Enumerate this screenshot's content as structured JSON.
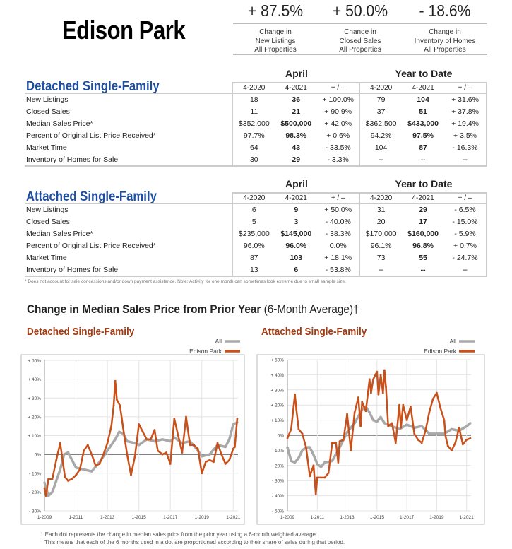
{
  "title": "Edison Park",
  "stats": [
    {
      "value": "+ 87.5%",
      "line1": "Change in",
      "line2": "New Listings",
      "line3": "All Properties"
    },
    {
      "value": "+ 50.0%",
      "line1": "Change in",
      "line2": "Closed Sales",
      "line3": "All Properties"
    },
    {
      "value": "- 18.6%",
      "line1": "Change in",
      "line2": "Inventory of Homes",
      "line3": "All Properties"
    }
  ],
  "group_labels": {
    "month": "April",
    "ytd": "Year to Date"
  },
  "columns": [
    "4-2020",
    "4-2021",
    "+ / –",
    "4-2020",
    "4-2021",
    "+ / –"
  ],
  "sections": [
    {
      "name": "Detached Single-Family",
      "rows": [
        {
          "label": "New Listings",
          "cells": [
            "18",
            "36",
            "+ 100.0%",
            "79",
            "104",
            "+ 31.6%"
          ]
        },
        {
          "label": "Closed Sales",
          "cells": [
            "11",
            "21",
            "+ 90.9%",
            "37",
            "51",
            "+ 37.8%"
          ]
        },
        {
          "label": "Median Sales Price*",
          "cells": [
            "$352,000",
            "$500,000",
            "+ 42.0%",
            "$362,500",
            "$433,000",
            "+ 19.4%"
          ]
        },
        {
          "label": "Percent of Original List Price Received*",
          "cells": [
            "97.7%",
            "98.3%",
            "+ 0.6%",
            "94.2%",
            "97.5%",
            "+ 3.5%"
          ]
        },
        {
          "label": "Market Time",
          "cells": [
            "64",
            "43",
            "- 33.5%",
            "104",
            "87",
            "- 16.3%"
          ]
        },
        {
          "label": "Inventory of Homes for Sale",
          "cells": [
            "30",
            "29",
            "- 3.3%",
            "--",
            "--",
            "--"
          ]
        }
      ]
    },
    {
      "name": "Attached Single-Family",
      "rows": [
        {
          "label": "New Listings",
          "cells": [
            "6",
            "9",
            "+ 50.0%",
            "31",
            "29",
            "- 6.5%"
          ]
        },
        {
          "label": "Closed Sales",
          "cells": [
            "5",
            "3",
            "- 40.0%",
            "20",
            "17",
            "- 15.0%"
          ]
        },
        {
          "label": "Median Sales Price*",
          "cells": [
            "$235,000",
            "$145,000",
            "- 38.3%",
            "$170,000",
            "$160,000",
            "- 5.9%"
          ]
        },
        {
          "label": "Percent of Original List Price Received*",
          "cells": [
            "96.0%",
            "96.0%",
            "0.0%",
            "96.1%",
            "96.8%",
            "+ 0.7%"
          ]
        },
        {
          "label": "Market Time",
          "cells": [
            "87",
            "103",
            "+ 18.1%",
            "73",
            "55",
            "- 24.7%"
          ]
        },
        {
          "label": "Inventory of Homes for Sale",
          "cells": [
            "13",
            "6",
            "- 53.8%",
            "--",
            "--",
            "--"
          ]
        }
      ]
    }
  ],
  "footnote": "* Does not account for sale concessions and/or down payment assistance. Note: Activity for one month can sometimes look extreme due to small sample size.",
  "chart_heading": "Change in Median Sales Price from Prior Year",
  "chart_heading_suffix": "(6-Month Average)†",
  "bottom_note_1": "† Each dot represents the change in median sales price from the prior year using a 6-month weighted average.",
  "bottom_note_2": "This means that each of the 6 months used in a dot are proportioned according to their share of sales during that period.",
  "colors": {
    "all": "#a8a8a8",
    "edison": "#c8501a",
    "title_blue": "#1f4fa0",
    "chart_title": "#a33b12"
  },
  "chart_data": [
    {
      "type": "line",
      "title": "Detached Single-Family",
      "legend_placement": "top-right",
      "grid": true,
      "xlim": [
        2009,
        2021.3
      ],
      "ylim": [
        -30,
        50
      ],
      "yticks": [
        -30,
        -20,
        -10,
        0,
        10,
        20,
        30,
        40,
        50
      ],
      "ytick_labels": [
        "- 30%",
        "- 20%",
        "- 10%",
        "0%",
        "+ 10%",
        "+ 20%",
        "+ 30%",
        "+ 40%",
        "+ 50%"
      ],
      "xticks": [
        2009,
        2011,
        2013,
        2015,
        2017,
        2019,
        2021
      ],
      "xtick_labels": [
        "1-2009",
        "1-2011",
        "1-2013",
        "1-2015",
        "1-2017",
        "1-2019",
        "1-2021"
      ],
      "series": [
        {
          "name": "All",
          "x": [
            2009.0,
            2009.25,
            2009.5,
            2009.75,
            2010.0,
            2010.25,
            2010.5,
            2010.75,
            2011.0,
            2011.5,
            2012.0,
            2012.5,
            2013.0,
            2013.5,
            2013.75,
            2014.0,
            2014.25,
            2014.75,
            2015.0,
            2015.5,
            2016.0,
            2016.5,
            2017.0,
            2017.25,
            2017.75,
            2018.25,
            2018.75,
            2019.0,
            2019.5,
            2020.0,
            2020.5,
            2020.75,
            2021.0,
            2021.25
          ],
          "y": [
            -15,
            -22,
            -20,
            -14,
            -8,
            0,
            1,
            -3,
            -7,
            -8,
            -9,
            -4,
            2,
            8,
            12,
            11,
            7,
            6,
            5,
            8,
            7,
            8,
            7,
            9,
            6,
            7,
            2,
            -1,
            0,
            5,
            4,
            8,
            16,
            17
          ]
        },
        {
          "name": "Edison Park",
          "x": [
            2009.0,
            2009.1,
            2009.25,
            2009.5,
            2009.75,
            2010.0,
            2010.1,
            2010.3,
            2010.5,
            2010.75,
            2011.0,
            2011.25,
            2011.5,
            2011.75,
            2012.0,
            2012.25,
            2012.5,
            2012.75,
            2013.0,
            2013.25,
            2013.4,
            2013.5,
            2013.6,
            2013.8,
            2014.0,
            2014.25,
            2014.5,
            2014.75,
            2015.0,
            2015.25,
            2015.5,
            2015.75,
            2016.0,
            2016.2,
            2016.5,
            2016.75,
            2017.0,
            2017.25,
            2017.5,
            2017.75,
            2018.0,
            2018.25,
            2018.5,
            2018.75,
            2019.0,
            2019.25,
            2019.5,
            2019.75,
            2020.0,
            2020.25,
            2020.5,
            2020.75,
            2021.0,
            2021.1,
            2021.25
          ],
          "y": [
            -18,
            -22,
            -13,
            -13,
            -3,
            6,
            0,
            -12,
            -14,
            -13,
            -11,
            -8,
            2,
            5,
            0,
            -6,
            -5,
            0,
            6,
            15,
            26,
            39,
            29,
            26,
            14,
            0,
            -11,
            -1,
            16,
            12,
            8,
            8,
            13,
            2,
            0,
            1,
            -5,
            19,
            10,
            1,
            20,
            5,
            5,
            3,
            -10,
            -4,
            -3,
            -4,
            6,
            0,
            -5,
            -3,
            3,
            4,
            19
          ]
        }
      ]
    },
    {
      "type": "line",
      "title": "Attached Single-Family",
      "legend_placement": "top-right",
      "grid": true,
      "xlim": [
        2009,
        2021.3
      ],
      "ylim": [
        -50,
        50
      ],
      "yticks": [
        -50,
        -40,
        -30,
        -20,
        -10,
        0,
        10,
        20,
        30,
        40,
        50
      ],
      "ytick_labels": [
        "- 50%",
        "- 40%",
        "- 30%",
        "- 20%",
        "- 10%",
        "0%",
        "+ 10%",
        "+ 20%",
        "+ 30%",
        "+ 40%",
        "+ 50%"
      ],
      "xticks": [
        2009,
        2011,
        2013,
        2015,
        2017,
        2019,
        2021
      ],
      "xtick_labels": [
        "1-2009",
        "1-2011",
        "1-2013",
        "1-2015",
        "1-2017",
        "1-2019",
        "1-2021"
      ],
      "series": [
        {
          "name": "All",
          "x": [
            2009.0,
            2009.25,
            2009.5,
            2009.75,
            2010.0,
            2010.25,
            2010.5,
            2010.75,
            2011.0,
            2011.25,
            2011.5,
            2012.0,
            2012.5,
            2013.0,
            2013.5,
            2014.0,
            2014.25,
            2014.5,
            2014.75,
            2015.0,
            2015.25,
            2015.5,
            2016.0,
            2016.5,
            2017.0,
            2017.5,
            2018.0,
            2018.5,
            2019.0,
            2019.5,
            2020.0,
            2020.5,
            2021.0,
            2021.25
          ],
          "y": [
            -8,
            -17,
            -18,
            -15,
            -10,
            -8,
            -8,
            -13,
            -19,
            -21,
            -18,
            -17,
            -8,
            2,
            8,
            17,
            19,
            15,
            10,
            9,
            12,
            8,
            6,
            4,
            7,
            5,
            6,
            1,
            1,
            1,
            4,
            3,
            6,
            8
          ]
        },
        {
          "name": "Edison Park",
          "x": [
            2009.0,
            2009.25,
            2009.5,
            2009.6,
            2009.75,
            2010.0,
            2010.25,
            2010.5,
            2010.75,
            2010.9,
            2011.0,
            2011.5,
            2011.75,
            2012.0,
            2012.25,
            2012.4,
            2012.5,
            2012.75,
            2013.0,
            2013.25,
            2013.5,
            2013.75,
            2013.9,
            2014.0,
            2014.25,
            2014.5,
            2014.6,
            2014.75,
            2015.0,
            2015.1,
            2015.25,
            2015.4,
            2015.5,
            2015.6,
            2015.75,
            2016.0,
            2016.25,
            2016.5,
            2016.6,
            2016.75,
            2017.0,
            2017.25,
            2017.5,
            2017.75,
            2018.0,
            2018.25,
            2018.5,
            2018.75,
            2019.0,
            2019.25,
            2019.5,
            2019.6,
            2019.75,
            2020.0,
            2020.25,
            2020.5,
            2020.75,
            2021.0,
            2021.25
          ],
          "y": [
            -2,
            4,
            27,
            17,
            4,
            1,
            -8,
            -27,
            -20,
            -39,
            -28,
            -28,
            -25,
            -5,
            -5,
            -18,
            -4,
            -3,
            14,
            -10,
            15,
            25,
            6,
            22,
            16,
            37,
            28,
            37,
            42,
            27,
            40,
            28,
            43,
            32,
            6,
            8,
            -5,
            20,
            5,
            20,
            10,
            19,
            1,
            -3,
            -5,
            3,
            15,
            24,
            28,
            18,
            10,
            -1,
            -7,
            -10,
            -5,
            5,
            -6,
            -3,
            -2
          ]
        }
      ]
    }
  ]
}
